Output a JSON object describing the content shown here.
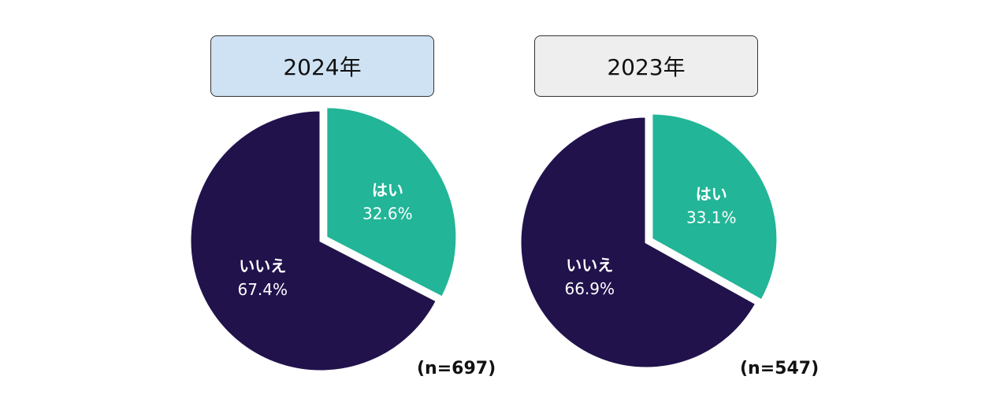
{
  "chart_data": [
    {
      "type": "pie",
      "title": "2024年",
      "categories": [
        "はい",
        "いいえ"
      ],
      "values": [
        32.6,
        67.4
      ],
      "value_labels": [
        "32.6%",
        "67.4%"
      ],
      "n_label": "(n=697)",
      "title_box_color": "#cfe2f3",
      "colors": [
        "#22b597",
        "#21124c"
      ]
    },
    {
      "type": "pie",
      "title": "2023年",
      "categories": [
        "はい",
        "いいえ"
      ],
      "values": [
        33.1,
        66.9
      ],
      "value_labels": [
        "33.1%",
        "66.9%"
      ],
      "n_label": "(n=547)",
      "title_box_color": "#eeeeee",
      "colors": [
        "#22b597",
        "#21124c"
      ]
    }
  ]
}
